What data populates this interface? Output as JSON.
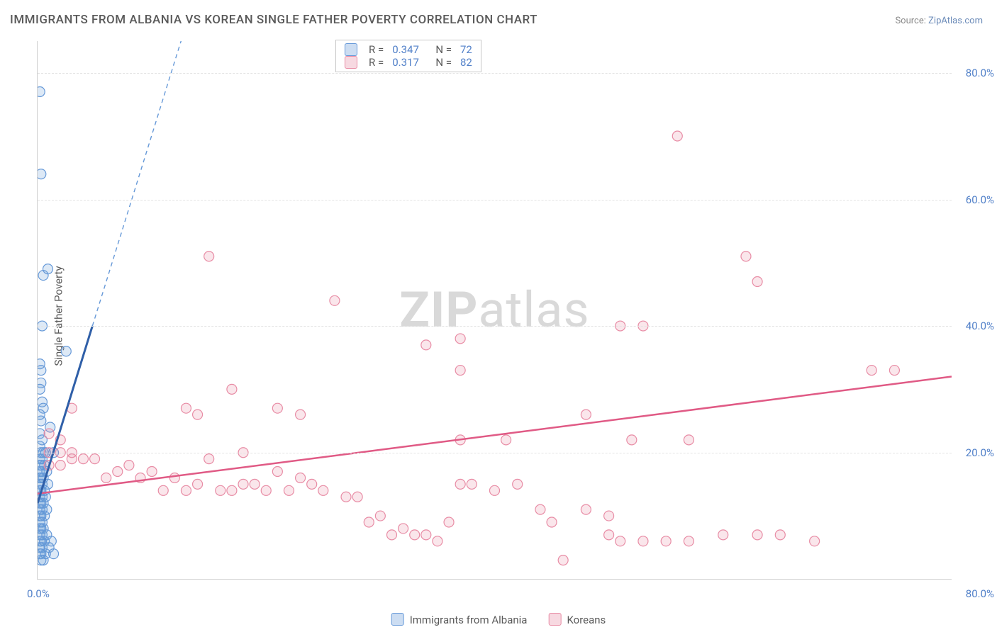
{
  "title": "IMMIGRANTS FROM ALBANIA VS KOREAN SINGLE FATHER POVERTY CORRELATION CHART",
  "source_label": "Source:",
  "source_name": "ZipAtlas.com",
  "ylabel": "Single Father Poverty",
  "watermark_a": "ZIP",
  "watermark_b": "atlas",
  "chart": {
    "type": "scatter",
    "xlim": [
      0,
      80
    ],
    "ylim": [
      0,
      85
    ],
    "grid_color": "#e3e3e3",
    "background_color": "#ffffff",
    "axis_color": "#d0d0d0",
    "tick_color": "#5281c9",
    "tick_fontsize": 15,
    "title_fontsize": 17,
    "title_color": "#5a5a5a",
    "xtick_min": "0.0%",
    "xtick_max": "80.0%",
    "yticks": [
      {
        "v": 20,
        "label": "20.0%"
      },
      {
        "v": 40,
        "label": "40.0%"
      },
      {
        "v": 60,
        "label": "60.0%"
      },
      {
        "v": 80,
        "label": "80.0%"
      }
    ],
    "marker_radius": 7,
    "marker_stroke_width": 1.2,
    "marker_fill_opacity": 0.22
  },
  "series": [
    {
      "name": "Immigrants from Albania",
      "color": "#6699d8",
      "line_color": "#2f5fa8",
      "R": "0.347",
      "N": "72",
      "trend": {
        "x1": 0,
        "y1": 12,
        "x2": 4.8,
        "y2": 40,
        "dash_x2": 16,
        "dash_y2": 105
      },
      "points": [
        [
          0.2,
          77
        ],
        [
          0.3,
          64
        ],
        [
          0.5,
          48
        ],
        [
          0.9,
          49
        ],
        [
          0.4,
          40
        ],
        [
          0.2,
          34
        ],
        [
          0.3,
          33
        ],
        [
          2.5,
          36
        ],
        [
          0.3,
          31
        ],
        [
          0.2,
          30
        ],
        [
          0.4,
          28
        ],
        [
          0.2,
          26
        ],
        [
          0.5,
          27
        ],
        [
          0.3,
          25
        ],
        [
          1.1,
          24
        ],
        [
          0.2,
          23
        ],
        [
          0.4,
          22
        ],
        [
          0.2,
          21
        ],
        [
          0.3,
          20
        ],
        [
          0.5,
          20
        ],
        [
          0.7,
          20
        ],
        [
          0.2,
          19
        ],
        [
          0.4,
          19
        ],
        [
          1.4,
          20
        ],
        [
          0.2,
          18
        ],
        [
          0.3,
          18
        ],
        [
          0.6,
          18
        ],
        [
          0.2,
          17
        ],
        [
          0.4,
          17
        ],
        [
          0.8,
          17
        ],
        [
          0.2,
          16
        ],
        [
          0.3,
          16
        ],
        [
          0.5,
          16
        ],
        [
          0.2,
          15
        ],
        [
          0.4,
          15
        ],
        [
          0.9,
          15
        ],
        [
          0.2,
          14
        ],
        [
          0.3,
          14
        ],
        [
          0.6,
          14
        ],
        [
          0.2,
          13
        ],
        [
          0.4,
          13
        ],
        [
          0.7,
          13
        ],
        [
          0.2,
          12
        ],
        [
          0.3,
          12
        ],
        [
          0.5,
          12
        ],
        [
          0.2,
          11
        ],
        [
          0.4,
          11
        ],
        [
          0.8,
          11
        ],
        [
          0.2,
          10
        ],
        [
          0.3,
          10
        ],
        [
          0.6,
          10
        ],
        [
          0.2,
          9
        ],
        [
          0.4,
          9
        ],
        [
          0.2,
          8
        ],
        [
          0.3,
          8
        ],
        [
          0.5,
          8
        ],
        [
          0.2,
          7
        ],
        [
          0.4,
          7
        ],
        [
          0.8,
          7
        ],
        [
          0.2,
          6
        ],
        [
          0.3,
          6
        ],
        [
          0.6,
          6
        ],
        [
          1.2,
          6
        ],
        [
          0.2,
          5
        ],
        [
          0.4,
          5
        ],
        [
          1.0,
          5
        ],
        [
          0.2,
          4
        ],
        [
          0.3,
          4
        ],
        [
          0.7,
          4
        ],
        [
          1.4,
          4
        ],
        [
          0.5,
          3
        ],
        [
          0.3,
          3
        ]
      ]
    },
    {
      "name": "Koreans",
      "color": "#e88ca5",
      "line_color": "#e05a85",
      "R": "0.317",
      "N": "82",
      "trend": {
        "x1": 0,
        "y1": 13.5,
        "x2": 80,
        "y2": 32
      },
      "points": [
        [
          56,
          70
        ],
        [
          62,
          51
        ],
        [
          63,
          47
        ],
        [
          15,
          51
        ],
        [
          26,
          44
        ],
        [
          53,
          40
        ],
        [
          51,
          40
        ],
        [
          37,
          38
        ],
        [
          34,
          37
        ],
        [
          73,
          33
        ],
        [
          75,
          33
        ],
        [
          37,
          33
        ],
        [
          17,
          30
        ],
        [
          21,
          27
        ],
        [
          13,
          27
        ],
        [
          3,
          27
        ],
        [
          23,
          26
        ],
        [
          14,
          26
        ],
        [
          1,
          23
        ],
        [
          2,
          22
        ],
        [
          52,
          22
        ],
        [
          37,
          22
        ],
        [
          48,
          26
        ],
        [
          41,
          22
        ],
        [
          57,
          22
        ],
        [
          18,
          20
        ],
        [
          1,
          20
        ],
        [
          2,
          20
        ],
        [
          3,
          20
        ],
        [
          4,
          19
        ],
        [
          5,
          19
        ],
        [
          6,
          16
        ],
        [
          2,
          18
        ],
        [
          3,
          19
        ],
        [
          1,
          18
        ],
        [
          7,
          17
        ],
        [
          8,
          18
        ],
        [
          9,
          16
        ],
        [
          10,
          17
        ],
        [
          11,
          14
        ],
        [
          12,
          16
        ],
        [
          13,
          14
        ],
        [
          14,
          15
        ],
        [
          15,
          19
        ],
        [
          16,
          14
        ],
        [
          17,
          14
        ],
        [
          18,
          15
        ],
        [
          19,
          15
        ],
        [
          20,
          14
        ],
        [
          21,
          17
        ],
        [
          22,
          14
        ],
        [
          23,
          16
        ],
        [
          24,
          15
        ],
        [
          25,
          14
        ],
        [
          27,
          13
        ],
        [
          28,
          13
        ],
        [
          29,
          9
        ],
        [
          30,
          10
        ],
        [
          31,
          7
        ],
        [
          32,
          8
        ],
        [
          33,
          7
        ],
        [
          34,
          7
        ],
        [
          35,
          6
        ],
        [
          36,
          9
        ],
        [
          37,
          15
        ],
        [
          38,
          15
        ],
        [
          40,
          14
        ],
        [
          42,
          15
        ],
        [
          44,
          11
        ],
        [
          45,
          9
        ],
        [
          46,
          3
        ],
        [
          48,
          11
        ],
        [
          50,
          10
        ],
        [
          50,
          7
        ],
        [
          51,
          6
        ],
        [
          53,
          6
        ],
        [
          55,
          6
        ],
        [
          57,
          6
        ],
        [
          60,
          7
        ],
        [
          63,
          7
        ],
        [
          65,
          7
        ],
        [
          68,
          6
        ]
      ]
    }
  ],
  "xlegend": {
    "a": "Immigrants from Albania",
    "b": "Koreans"
  },
  "legend_labels": {
    "R": "R =",
    "N": "N ="
  }
}
